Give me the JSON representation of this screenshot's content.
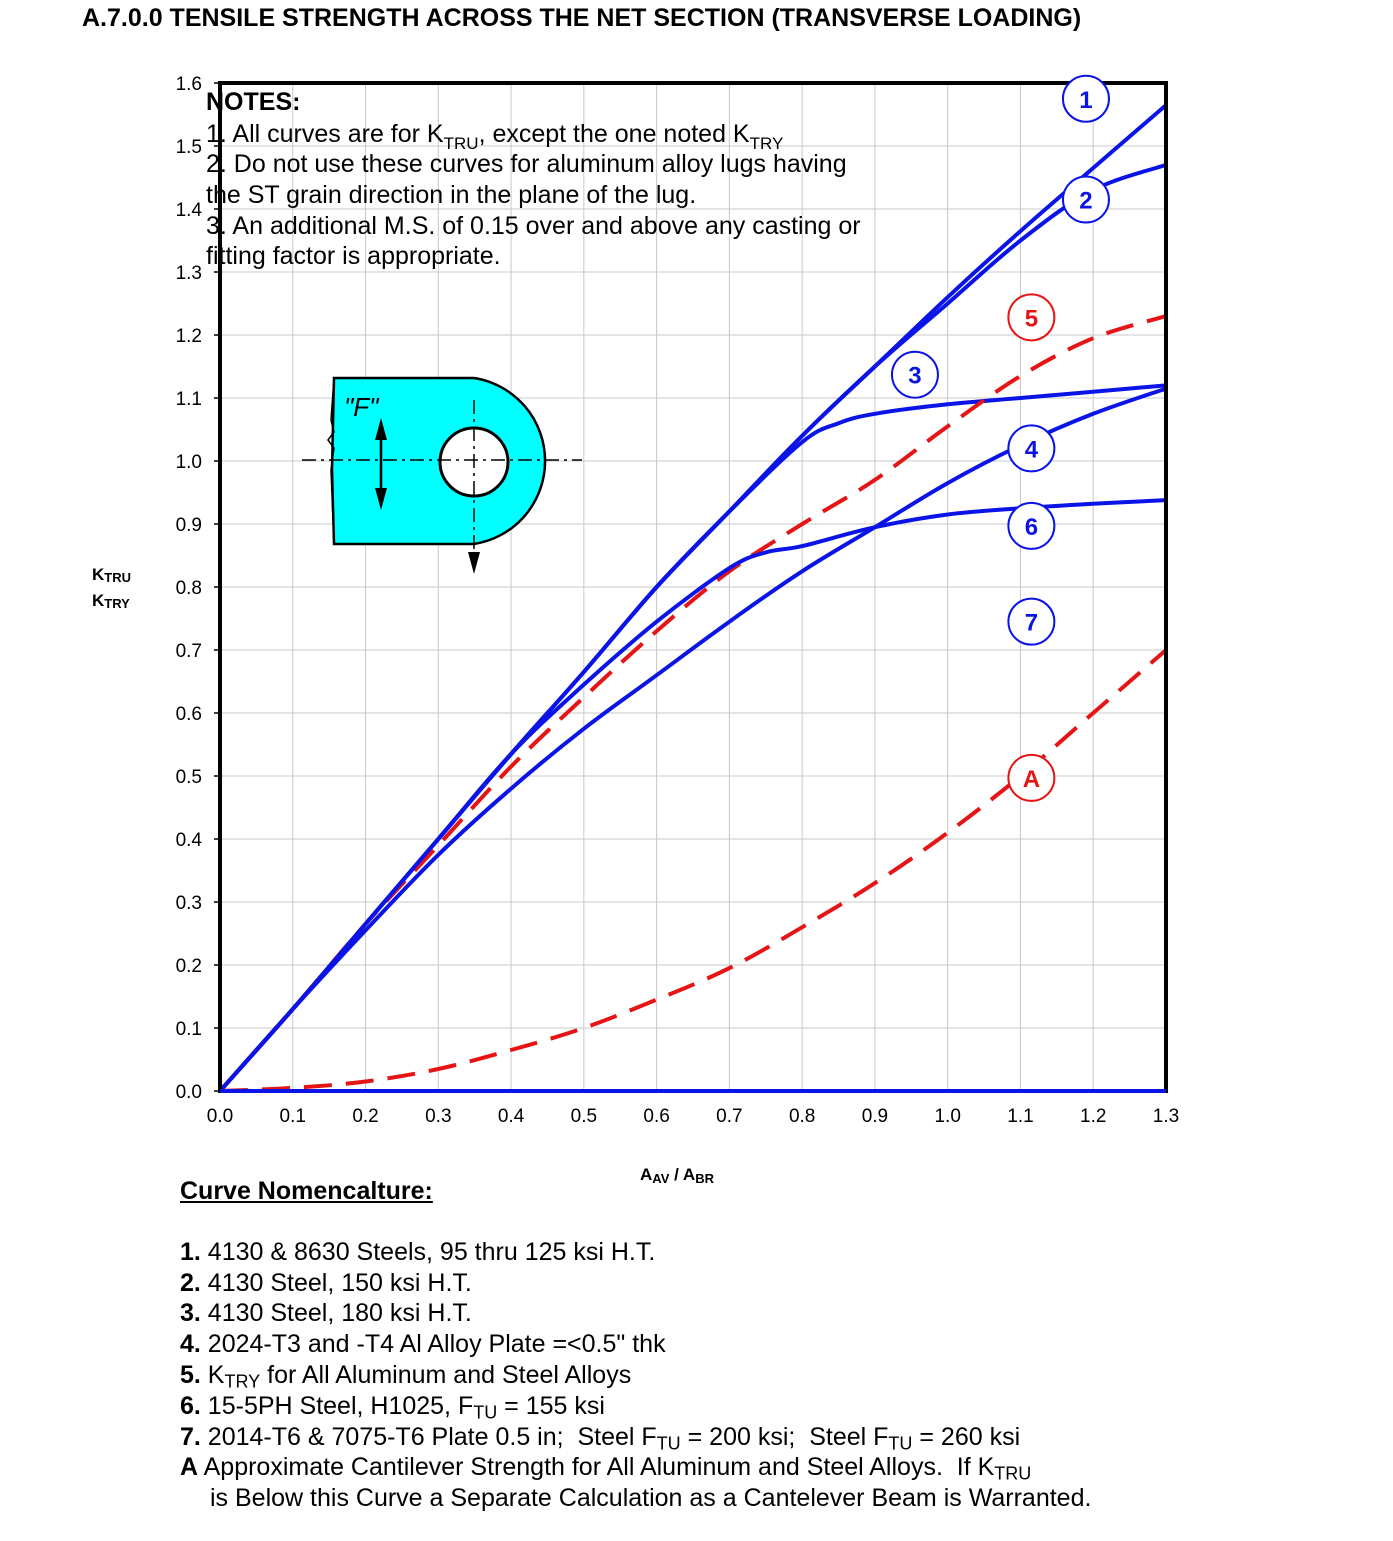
{
  "title": "A.7.0.0 TENSILE STRENGTH ACROSS THE NET SECTION (TRANSVERSE LOADING)",
  "chart_data": {
    "type": "line",
    "xlabel": "AAV / ABR",
    "ylabel": "KTRU / KTRY",
    "xlim": [
      0.0,
      1.3
    ],
    "ylim": [
      0.0,
      1.6
    ],
    "xticks": [
      "0.0",
      "0.1",
      "0.2",
      "0.3",
      "0.4",
      "0.5",
      "0.6",
      "0.7",
      "0.8",
      "0.9",
      "1.0",
      "1.1",
      "1.2",
      "1.3"
    ],
    "yticks": [
      "0.0",
      "0.1",
      "0.2",
      "0.3",
      "0.4",
      "0.5",
      "0.6",
      "0.7",
      "0.8",
      "0.9",
      "1.0",
      "1.1",
      "1.2",
      "1.3",
      "1.4",
      "1.5",
      "1.6"
    ],
    "grid": true,
    "series": [
      {
        "name": "1",
        "color": "#0a14e6",
        "style": "solid",
        "points": [
          [
            0,
            0
          ],
          [
            0.1,
            0.13
          ],
          [
            0.2,
            0.265
          ],
          [
            0.3,
            0.4
          ],
          [
            0.4,
            0.535
          ],
          [
            0.5,
            0.665
          ],
          [
            0.6,
            0.8
          ],
          [
            0.7,
            0.92
          ],
          [
            0.8,
            1.04
          ],
          [
            0.9,
            1.15
          ],
          [
            1.0,
            1.26
          ],
          [
            1.1,
            1.365
          ],
          [
            1.2,
            1.465
          ],
          [
            1.3,
            1.565
          ]
        ]
      },
      {
        "name": "2",
        "color": "#0a14e6",
        "style": "solid",
        "points": [
          [
            0,
            0
          ],
          [
            0.1,
            0.13
          ],
          [
            0.2,
            0.265
          ],
          [
            0.3,
            0.4
          ],
          [
            0.4,
            0.535
          ],
          [
            0.5,
            0.665
          ],
          [
            0.6,
            0.8
          ],
          [
            0.7,
            0.92
          ],
          [
            0.8,
            1.04
          ],
          [
            0.9,
            1.15
          ],
          [
            1.0,
            1.25
          ],
          [
            1.1,
            1.35
          ],
          [
            1.2,
            1.43
          ],
          [
            1.3,
            1.47
          ]
        ]
      },
      {
        "name": "3",
        "color": "#0a14e6",
        "style": "solid",
        "points": [
          [
            0,
            0
          ],
          [
            0.1,
            0.13
          ],
          [
            0.2,
            0.265
          ],
          [
            0.3,
            0.4
          ],
          [
            0.4,
            0.535
          ],
          [
            0.5,
            0.665
          ],
          [
            0.6,
            0.8
          ],
          [
            0.7,
            0.92
          ],
          [
            0.8,
            1.03
          ],
          [
            0.85,
            1.06
          ],
          [
            0.9,
            1.075
          ],
          [
            1.0,
            1.09
          ],
          [
            1.1,
            1.1
          ],
          [
            1.2,
            1.11
          ],
          [
            1.3,
            1.12
          ]
        ]
      },
      {
        "name": "4",
        "color": "#0a14e6",
        "style": "solid",
        "points": [
          [
            0,
            0
          ],
          [
            0.1,
            0.13
          ],
          [
            0.2,
            0.255
          ],
          [
            0.3,
            0.375
          ],
          [
            0.4,
            0.48
          ],
          [
            0.5,
            0.575
          ],
          [
            0.6,
            0.66
          ],
          [
            0.7,
            0.745
          ],
          [
            0.8,
            0.825
          ],
          [
            0.9,
            0.895
          ],
          [
            1.0,
            0.965
          ],
          [
            1.1,
            1.025
          ],
          [
            1.2,
            1.075
          ],
          [
            1.3,
            1.115
          ]
        ]
      },
      {
        "name": "5",
        "color": "#e61414",
        "style": "dashed",
        "points": [
          [
            0,
            0
          ],
          [
            0.1,
            0.13
          ],
          [
            0.2,
            0.265
          ],
          [
            0.3,
            0.39
          ],
          [
            0.4,
            0.515
          ],
          [
            0.5,
            0.625
          ],
          [
            0.6,
            0.73
          ],
          [
            0.7,
            0.825
          ],
          [
            0.8,
            0.9
          ],
          [
            0.9,
            0.97
          ],
          [
            1.0,
            1.055
          ],
          [
            1.1,
            1.135
          ],
          [
            1.2,
            1.195
          ],
          [
            1.3,
            1.23
          ]
        ]
      },
      {
        "name": "6",
        "color": "#0a14e6",
        "style": "solid",
        "points": [
          [
            0,
            0
          ],
          [
            0.1,
            0.13
          ],
          [
            0.2,
            0.265
          ],
          [
            0.3,
            0.4
          ],
          [
            0.4,
            0.535
          ],
          [
            0.5,
            0.645
          ],
          [
            0.6,
            0.745
          ],
          [
            0.7,
            0.83
          ],
          [
            0.75,
            0.855
          ],
          [
            0.8,
            0.865
          ],
          [
            0.9,
            0.895
          ],
          [
            1.0,
            0.915
          ],
          [
            1.1,
            0.925
          ],
          [
            1.2,
            0.932
          ],
          [
            1.3,
            0.938
          ]
        ]
      },
      {
        "name": "A",
        "color": "#e61414",
        "style": "dashed",
        "points": [
          [
            0,
            0
          ],
          [
            0.1,
            0.005
          ],
          [
            0.2,
            0.015
          ],
          [
            0.3,
            0.035
          ],
          [
            0.4,
            0.065
          ],
          [
            0.5,
            0.1
          ],
          [
            0.6,
            0.145
          ],
          [
            0.7,
            0.195
          ],
          [
            0.8,
            0.26
          ],
          [
            0.9,
            0.33
          ],
          [
            1.0,
            0.41
          ],
          [
            1.1,
            0.5
          ],
          [
            1.2,
            0.6
          ],
          [
            1.3,
            0.7
          ]
        ]
      }
    ],
    "baseline": {
      "y": 0.0,
      "color": "#0a14e6"
    },
    "curve_labels": [
      {
        "text": "1",
        "x": 1.19,
        "y": 1.575,
        "color": "#0a14e6"
      },
      {
        "text": "2",
        "x": 1.19,
        "y": 1.415,
        "color": "#0a14e6"
      },
      {
        "text": "3",
        "x": 0.955,
        "y": 1.137,
        "color": "#0a14e6"
      },
      {
        "text": "4",
        "x": 1.115,
        "y": 1.02,
        "color": "#0a14e6"
      },
      {
        "text": "5",
        "x": 1.115,
        "y": 1.228,
        "color": "#e61414"
      },
      {
        "text": "6",
        "x": 1.115,
        "y": 0.897,
        "color": "#0a14e6"
      },
      {
        "text": "7",
        "x": 1.115,
        "y": 0.745,
        "color": "#0a14e6"
      },
      {
        "text": "A",
        "x": 1.115,
        "y": 0.497,
        "color": "#e61414"
      }
    ],
    "notes": [
      "NOTES:",
      "1. All curves are for KTRU, except the one noted KTRY",
      "2. Do not use these curves for aluminum alloy lugs having",
      "the ST grain direction in the plane of the lug.",
      "3. An additional M.S. of 0.15 over and above any casting or",
      "fitting factor is appropriate."
    ],
    "diagram": {
      "load_label": "\"F\"",
      "fill_color": "#00ffff"
    }
  },
  "nomenclature": {
    "heading": "Curve Nomencalture:",
    "items": [
      {
        "key": "1.",
        "text": "4130 & 8630 Steels, 95 thru 125 ksi H.T."
      },
      {
        "key": "2.",
        "text": "4130 Steel, 150 ksi H.T."
      },
      {
        "key": "3.",
        "text": "4130 Steel, 180 ksi H.T."
      },
      {
        "key": "4.",
        "text": "2024-T3 and -T4 Al Alloy Plate =<0.5\" thk"
      },
      {
        "key": "5.",
        "text": "KTRY for All Aluminum and Steel Alloys"
      },
      {
        "key": "6.",
        "text": "15-5PH Steel, H1025, FTU = 155 ksi"
      },
      {
        "key": "7.",
        "text": "2014-T6 & 7075-T6 Plate 0.5 in;  Steel FTU = 200 ksi;  Steel FTU = 260 ksi"
      },
      {
        "key": "A",
        "text": "Approximate Cantilever Strength for All Aluminum and Steel Alloys.  If KTRU"
      },
      {
        "key": "",
        "text": "is Below this Curve a Separate Calculation as a Cantelever Beam is Warranted."
      }
    ]
  }
}
